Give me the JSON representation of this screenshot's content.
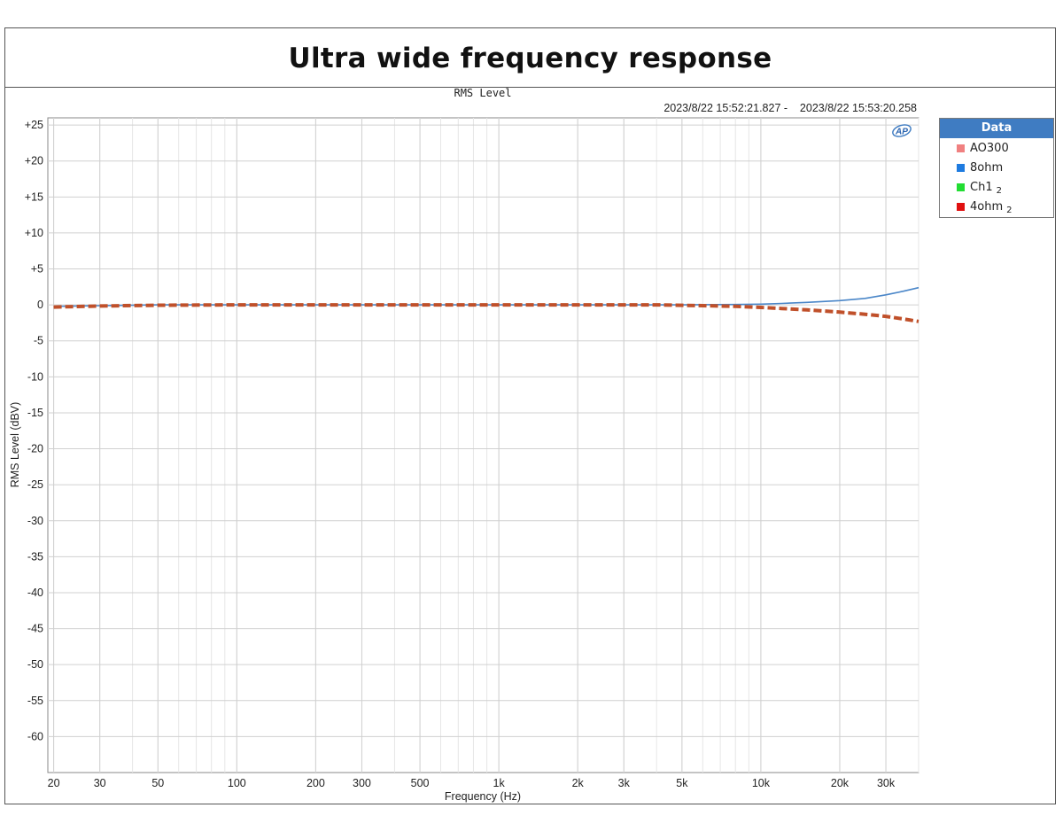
{
  "page": {
    "title": "Ultra wide frequency response"
  },
  "chart_data": {
    "type": "line",
    "title": "RMS Level",
    "time_range": "2023/8/22 15:52:21.827 -    2023/8/22 15:53:20.258",
    "xlabel": "Frequency (Hz)",
    "ylabel": "RMS Level (dBV)",
    "x_scale": "log",
    "xlim": [
      19,
      40000
    ],
    "ylim": [
      -65,
      26
    ],
    "grid": true,
    "legend_position": "top-right (outside plot)",
    "x_ticks": [
      20,
      30,
      50,
      100,
      200,
      300,
      500,
      1000,
      2000,
      3000,
      5000,
      10000,
      20000,
      30000
    ],
    "x_tick_labels": [
      "20",
      "30",
      "50",
      "100",
      "200",
      "300",
      "500",
      "1k",
      "2k",
      "3k",
      "5k",
      "10k",
      "20k",
      "30k"
    ],
    "y_ticks": [
      25,
      20,
      15,
      10,
      5,
      0,
      -5,
      -10,
      -15,
      -20,
      -25,
      -30,
      -35,
      -40,
      -45,
      -50,
      -55,
      -60
    ],
    "y_tick_labels": [
      "+25",
      "+20",
      "+15",
      "+10",
      "+5",
      "0",
      "-5",
      "-10",
      "-15",
      "-20",
      "-25",
      "-30",
      "-35",
      "-40",
      "-45",
      "-50",
      "-55",
      "-60"
    ],
    "legend_title": "Data",
    "legend": [
      {
        "name": "AO300",
        "sub": "",
        "color": "#f08080"
      },
      {
        "name": "8ohm",
        "sub": "",
        "color": "#1e7be0"
      },
      {
        "name": "Ch1",
        "sub": "2",
        "color": "#22dd33"
      },
      {
        "name": "4ohm",
        "sub": "2",
        "color": "#e01010"
      }
    ],
    "series": [
      {
        "name": "8ohm",
        "color": "#4a86c8",
        "style": "solid",
        "x": [
          20,
          30,
          50,
          100,
          200,
          500,
          1000,
          2000,
          5000,
          8000,
          10000,
          12000,
          15000,
          20000,
          25000,
          30000,
          35000,
          40000
        ],
        "y": [
          -0.2,
          -0.1,
          0,
          0,
          0,
          0,
          0,
          0,
          0,
          0.05,
          0.1,
          0.2,
          0.35,
          0.6,
          0.9,
          1.4,
          1.9,
          2.4
        ]
      },
      {
        "name": "4ohm",
        "color": "#c0502a",
        "style": "dashed",
        "x": [
          20,
          30,
          50,
          100,
          200,
          500,
          1000,
          2000,
          4000,
          6000,
          8000,
          10000,
          12000,
          15000,
          20000,
          25000,
          30000,
          35000,
          40000
        ],
        "y": [
          -0.3,
          -0.15,
          -0.05,
          0,
          0,
          0,
          0,
          0,
          0,
          -0.1,
          -0.2,
          -0.35,
          -0.5,
          -0.7,
          -1.0,
          -1.3,
          -1.6,
          -1.95,
          -2.3
        ]
      }
    ]
  }
}
